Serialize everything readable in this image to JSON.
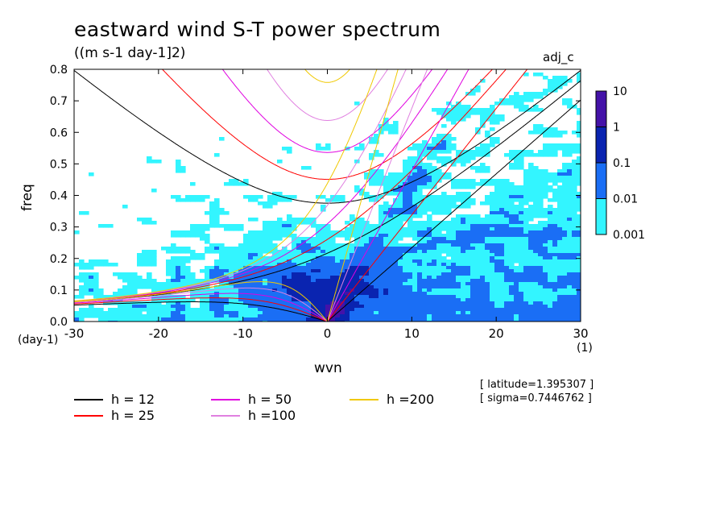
{
  "chart_data": {
    "type": "heatmap",
    "title": "eastward wind S-T power spectrum",
    "subtitle": "((m s-1 day-1]2)",
    "tag": "adj_c",
    "xlabel": "wvn",
    "ylabel": "freq",
    "x_unit": "(1)",
    "y_unit": "(day-1)",
    "xlim": [
      -30,
      30
    ],
    "ylim": [
      0,
      0.8
    ],
    "x_ticks": [
      -30,
      -20,
      -10,
      0,
      10,
      20,
      30
    ],
    "x_tick_labels": [
      "-30",
      "-20",
      "-10",
      "0",
      "10",
      "20",
      "30"
    ],
    "y_ticks": [
      0,
      0.1,
      0.2,
      0.3,
      0.4,
      0.5,
      0.6,
      0.7,
      0.8
    ],
    "y_tick_labels": [
      "0.0",
      "0.1",
      "0.2",
      "0.3",
      "0.4",
      "0.5",
      "0.6",
      "0.7",
      "0.8"
    ],
    "colorbar": {
      "levels": [
        "0.001",
        "0.01",
        "0.1",
        "1",
        "10"
      ],
      "colors": [
        "#33f5ff",
        "#1a6ef5",
        "#0a24b0",
        "#4412a8"
      ]
    },
    "dispersion_curves": [
      {
        "label": "h = 12",
        "color": "#000000",
        "h": 12
      },
      {
        "label": "h = 25",
        "color": "#ff0000",
        "h": 25
      },
      {
        "label": "h = 50",
        "color": "#e000e0",
        "h": 50
      },
      {
        "label": "h =100",
        "color": "#e080e0",
        "h": 100
      },
      {
        "label": "h =200",
        "color": "#f0c800",
        "h": 200
      }
    ],
    "info": [
      "[ latitude=1.395307 ]",
      "[ sigma=0.7446762 ]"
    ]
  }
}
